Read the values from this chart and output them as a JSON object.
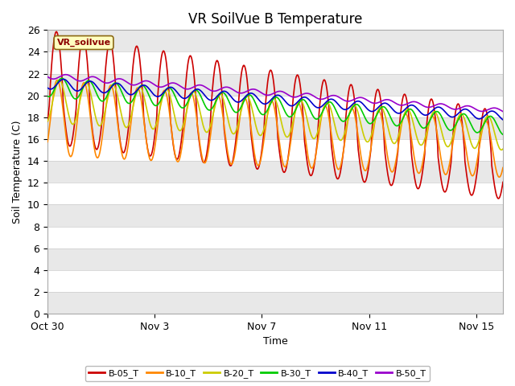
{
  "title": "VR SoilVue B Temperature",
  "xlabel": "Time",
  "ylabel": "Soil Temperature (C)",
  "ylim": [
    0,
    26
  ],
  "xlim_days": 17,
  "bg_color": "#ffffff",
  "plot_bg_color": "#ffffff",
  "legend_label": "VR_soilvue",
  "series_names": [
    "B-05_T",
    "B-10_T",
    "B-20_T",
    "B-30_T",
    "B-40_T",
    "B-50_T"
  ],
  "series_colors": [
    "#cc0000",
    "#ff8800",
    "#cccc00",
    "#00cc00",
    "#0000cc",
    "#9900cc"
  ],
  "xtick_labels": [
    "Oct 30",
    "Nov 3",
    "Nov 7",
    "Nov 11",
    "Nov 15"
  ],
  "xtick_positions_days": [
    0,
    4,
    8,
    12,
    16
  ],
  "yticks": [
    0,
    2,
    4,
    6,
    8,
    10,
    12,
    14,
    16,
    18,
    20,
    22,
    24,
    26
  ],
  "title_fontsize": 12,
  "axis_label_fontsize": 9,
  "tick_fontsize": 9,
  "linewidth": 1.2
}
